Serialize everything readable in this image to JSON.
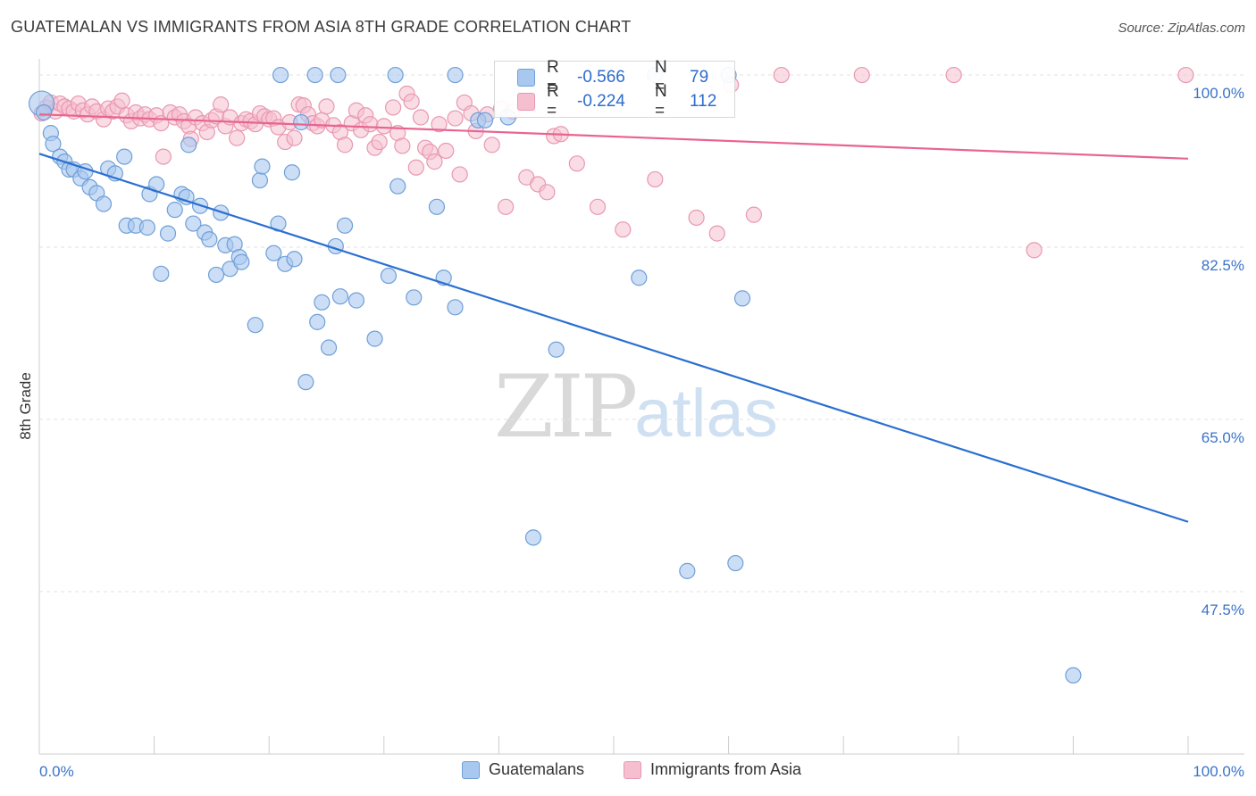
{
  "header": {
    "title": "GUATEMALAN VS IMMIGRANTS FROM ASIA 8TH GRADE CORRELATION CHART",
    "source": "Source: ZipAtlas.com"
  },
  "watermark": {
    "zip": "ZIP",
    "atlas": "atlas"
  },
  "stats": {
    "rows": [
      {
        "r_label": "R =",
        "r_value": "-0.566",
        "n_label": "N =",
        "n_value": "79"
      },
      {
        "r_label": "R =",
        "r_value": "-0.224",
        "n_label": "N =",
        "n_value": "112"
      }
    ]
  },
  "legend": {
    "items": [
      {
        "label": "Guatemalans"
      },
      {
        "label": "Immigrants from Asia"
      }
    ]
  },
  "colors": {
    "blue_fill": "#a9c8ef",
    "blue_stroke": "#6f9fd8",
    "blue_line": "#2a6fd1",
    "pink_fill": "#f6bfd0",
    "pink_stroke": "#e898b2",
    "pink_line": "#e8648e",
    "axis_label": "#3a73c9",
    "grid": "#e2e2e2"
  },
  "chart_data": {
    "type": "scatter",
    "title": "GUATEMALAN VS IMMIGRANTS FROM ASIA 8TH GRADE CORRELATION CHART",
    "xlabel": "",
    "ylabel": "8th Grade",
    "xlim": [
      0,
      100
    ],
    "ylim": [
      31,
      102
    ],
    "x_tick_labels": [
      "0.0%",
      "100.0%"
    ],
    "y_ticks": [
      {
        "value": 100.0,
        "label": "100.0%"
      },
      {
        "value": 82.5,
        "label": "82.5%"
      },
      {
        "value": 65.0,
        "label": "65.0%"
      },
      {
        "value": 47.5,
        "label": "47.5%"
      }
    ],
    "grid": true,
    "legend_position": "bottom",
    "series": [
      {
        "name": "Guatemalans",
        "trend": {
          "x": [
            0,
            100
          ],
          "y": [
            92.0,
            54.6
          ]
        },
        "points": [
          [
            0.2,
            97.1
          ],
          [
            0.4,
            96.2
          ],
          [
            1.0,
            94.1
          ],
          [
            1.2,
            93.0
          ],
          [
            1.8,
            91.7
          ],
          [
            2.2,
            91.2
          ],
          [
            2.6,
            90.4
          ],
          [
            3.0,
            90.4
          ],
          [
            3.6,
            89.5
          ],
          [
            4.0,
            90.2
          ],
          [
            4.4,
            88.6
          ],
          [
            5.0,
            88.0
          ],
          [
            6.0,
            90.5
          ],
          [
            6.6,
            90.0
          ],
          [
            5.6,
            86.9
          ],
          [
            7.4,
            91.7
          ],
          [
            7.6,
            84.7
          ],
          [
            8.4,
            84.7
          ],
          [
            9.4,
            84.5
          ],
          [
            9.6,
            87.9
          ],
          [
            10.2,
            88.9
          ],
          [
            10.6,
            79.8
          ],
          [
            11.2,
            83.9
          ],
          [
            11.8,
            86.3
          ],
          [
            12.4,
            87.9
          ],
          [
            12.8,
            87.6
          ],
          [
            13.0,
            92.9
          ],
          [
            13.4,
            84.9
          ],
          [
            14.0,
            86.7
          ],
          [
            14.4,
            84.0
          ],
          [
            14.8,
            83.3
          ],
          [
            15.4,
            79.7
          ],
          [
            15.8,
            86.0
          ],
          [
            16.2,
            82.7
          ],
          [
            16.6,
            80.3
          ],
          [
            17.0,
            82.8
          ],
          [
            17.4,
            81.5
          ],
          [
            17.6,
            81.0
          ],
          [
            18.8,
            74.6
          ],
          [
            19.2,
            89.3
          ],
          [
            19.4,
            90.7
          ],
          [
            20.4,
            81.9
          ],
          [
            20.8,
            84.9
          ],
          [
            21.4,
            80.8
          ],
          [
            22.0,
            90.1
          ],
          [
            22.2,
            81.3
          ],
          [
            22.8,
            95.2
          ],
          [
            23.2,
            68.8
          ],
          [
            24.2,
            74.9
          ],
          [
            24.6,
            76.9
          ],
          [
            25.2,
            72.3
          ],
          [
            25.8,
            82.6
          ],
          [
            26.2,
            77.5
          ],
          [
            26.6,
            84.7
          ],
          [
            27.6,
            77.1
          ],
          [
            29.2,
            73.2
          ],
          [
            30.4,
            79.6
          ],
          [
            31.2,
            88.7
          ],
          [
            32.6,
            77.4
          ],
          [
            34.6,
            86.6
          ],
          [
            35.2,
            79.4
          ],
          [
            36.2,
            76.4
          ],
          [
            38.2,
            95.4
          ],
          [
            40.8,
            95.7
          ],
          [
            43.0,
            53.0
          ],
          [
            45.0,
            72.1
          ],
          [
            52.2,
            79.4
          ],
          [
            56.4,
            49.6
          ],
          [
            60.6,
            50.4
          ],
          [
            61.2,
            77.3
          ],
          [
            21.0,
            100.0
          ],
          [
            24.0,
            100.0
          ],
          [
            26.0,
            100.0
          ],
          [
            31.0,
            100.0
          ],
          [
            36.2,
            100.0
          ],
          [
            53.6,
            100.0
          ],
          [
            60.0,
            100.0
          ],
          [
            90.0,
            39.0
          ],
          [
            38.8,
            95.4
          ]
        ]
      },
      {
        "name": "Immigrants from Asia",
        "trend": {
          "x": [
            0,
            100
          ],
          "y": [
            96.0,
            91.5
          ]
        },
        "points": [
          [
            0.2,
            96.1
          ],
          [
            0.6,
            96.7
          ],
          [
            1.0,
            97.2
          ],
          [
            1.4,
            96.3
          ],
          [
            1.8,
            97.1
          ],
          [
            2.2,
            96.8
          ],
          [
            2.6,
            96.6
          ],
          [
            3.0,
            96.3
          ],
          [
            3.4,
            97.1
          ],
          [
            3.8,
            96.4
          ],
          [
            4.2,
            96.0
          ],
          [
            4.6,
            96.8
          ],
          [
            5.0,
            96.3
          ],
          [
            5.6,
            95.5
          ],
          [
            6.0,
            96.6
          ],
          [
            6.4,
            96.3
          ],
          [
            6.8,
            96.8
          ],
          [
            7.2,
            97.4
          ],
          [
            7.6,
            95.9
          ],
          [
            8.0,
            95.3
          ],
          [
            8.4,
            96.2
          ],
          [
            8.8,
            95.6
          ],
          [
            9.2,
            96.0
          ],
          [
            9.6,
            95.5
          ],
          [
            10.2,
            95.9
          ],
          [
            10.6,
            95.1
          ],
          [
            10.8,
            91.7
          ],
          [
            11.4,
            96.2
          ],
          [
            11.8,
            95.7
          ],
          [
            12.2,
            96.0
          ],
          [
            12.6,
            95.3
          ],
          [
            13.0,
            94.8
          ],
          [
            13.2,
            93.5
          ],
          [
            13.6,
            95.7
          ],
          [
            14.2,
            95.1
          ],
          [
            14.6,
            94.2
          ],
          [
            15.0,
            95.4
          ],
          [
            15.4,
            95.8
          ],
          [
            15.8,
            97.0
          ],
          [
            16.2,
            94.8
          ],
          [
            16.6,
            95.7
          ],
          [
            17.2,
            93.6
          ],
          [
            17.6,
            95.1
          ],
          [
            18.0,
            95.5
          ],
          [
            18.4,
            95.3
          ],
          [
            18.8,
            95.0
          ],
          [
            19.2,
            96.1
          ],
          [
            19.6,
            95.8
          ],
          [
            20.0,
            95.5
          ],
          [
            20.4,
            95.6
          ],
          [
            20.8,
            94.7
          ],
          [
            21.4,
            93.2
          ],
          [
            21.8,
            95.2
          ],
          [
            22.2,
            93.6
          ],
          [
            22.6,
            97.0
          ],
          [
            23.0,
            96.9
          ],
          [
            23.4,
            96.0
          ],
          [
            23.8,
            95.1
          ],
          [
            24.2,
            94.8
          ],
          [
            24.6,
            95.4
          ],
          [
            25.0,
            96.8
          ],
          [
            25.6,
            94.9
          ],
          [
            26.2,
            94.2
          ],
          [
            26.6,
            92.9
          ],
          [
            27.2,
            95.1
          ],
          [
            27.6,
            96.4
          ],
          [
            28.0,
            94.4
          ],
          [
            28.4,
            95.9
          ],
          [
            28.8,
            95.0
          ],
          [
            29.2,
            92.6
          ],
          [
            29.6,
            93.2
          ],
          [
            30.0,
            94.8
          ],
          [
            30.8,
            96.7
          ],
          [
            31.2,
            94.1
          ],
          [
            31.6,
            92.8
          ],
          [
            32.0,
            98.1
          ],
          [
            32.4,
            97.3
          ],
          [
            32.8,
            90.6
          ],
          [
            33.2,
            95.7
          ],
          [
            33.6,
            92.6
          ],
          [
            34.0,
            92.2
          ],
          [
            34.4,
            91.2
          ],
          [
            34.8,
            95.0
          ],
          [
            35.4,
            92.3
          ],
          [
            36.2,
            95.6
          ],
          [
            36.6,
            89.9
          ],
          [
            37.0,
            97.2
          ],
          [
            37.6,
            96.1
          ],
          [
            38.0,
            94.3
          ],
          [
            39.0,
            96.0
          ],
          [
            39.4,
            92.9
          ],
          [
            40.2,
            96.6
          ],
          [
            40.6,
            86.6
          ],
          [
            41.2,
            96.3
          ],
          [
            42.4,
            89.6
          ],
          [
            43.4,
            88.9
          ],
          [
            44.2,
            88.1
          ],
          [
            44.8,
            93.8
          ],
          [
            45.4,
            94.0
          ],
          [
            46.8,
            91.0
          ],
          [
            48.6,
            86.6
          ],
          [
            50.8,
            84.3
          ],
          [
            53.6,
            89.4
          ],
          [
            57.2,
            85.5
          ],
          [
            59.0,
            83.9
          ],
          [
            62.2,
            85.8
          ],
          [
            79.6,
            100.0
          ],
          [
            86.6,
            82.2
          ],
          [
            99.8,
            100.0
          ],
          [
            71.6,
            100.0
          ],
          [
            64.6,
            100.0
          ],
          [
            60.2,
            99.0
          ]
        ]
      }
    ]
  },
  "axes": {
    "ylabel": "8th Grade",
    "x_left": "0.0%",
    "x_right": "100.0%"
  }
}
